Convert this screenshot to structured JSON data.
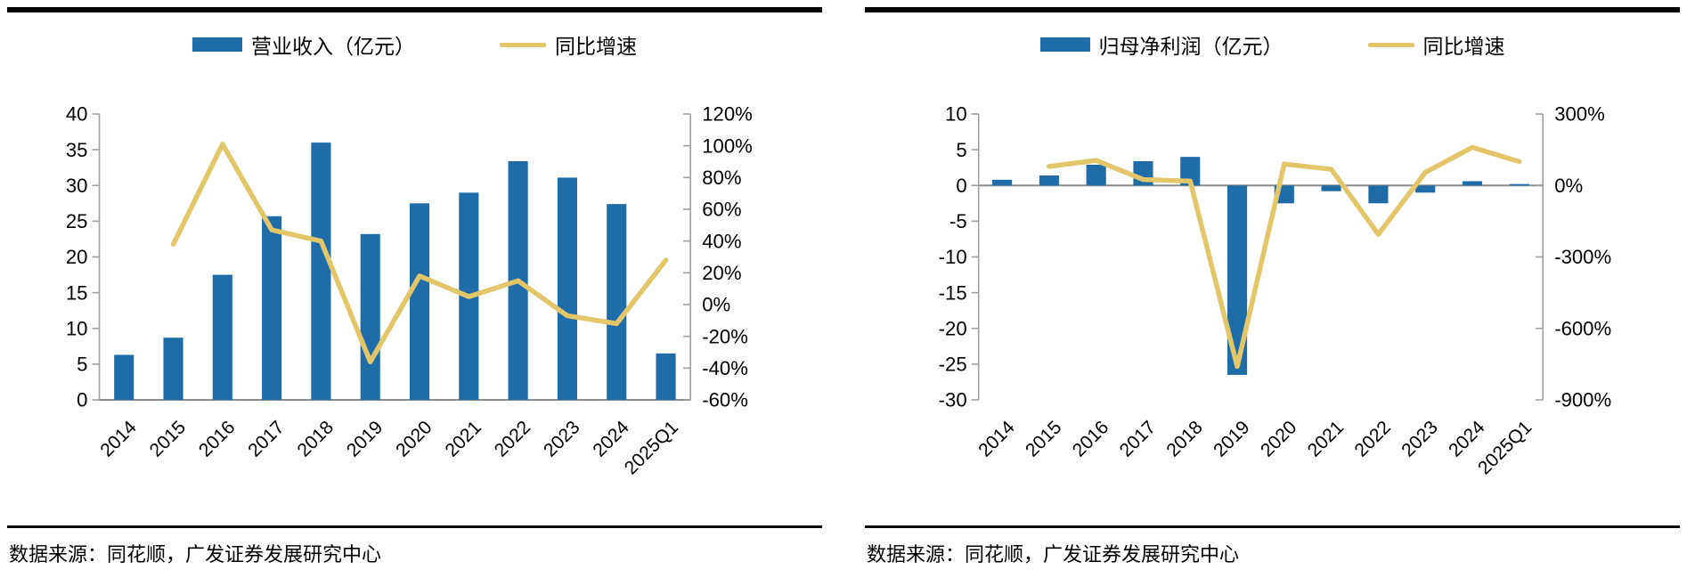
{
  "colors": {
    "bar": "#1F6DA8",
    "line": "#E3C66A",
    "axis": "#A0A0A0",
    "zero_line": "#8C8C8C",
    "top_rule": "#000000"
  },
  "chart_data": [
    {
      "type": "bar+line",
      "legend": [
        {
          "label": "营业收入（亿元）",
          "swatch": "bar"
        },
        {
          "label": "同比增速",
          "swatch": "line"
        }
      ],
      "categories": [
        "2014",
        "2015",
        "2016",
        "2017",
        "2018",
        "2019",
        "2020",
        "2021",
        "2022",
        "2023",
        "2024",
        "2025Q1"
      ],
      "series": [
        {
          "name": "营业收入（亿元）",
          "type": "bar",
          "axis": "left",
          "values": [
            6.3,
            8.7,
            17.5,
            25.7,
            36.0,
            23.2,
            27.5,
            29.0,
            33.4,
            31.1,
            27.4,
            6.5
          ]
        },
        {
          "name": "同比增速",
          "type": "line",
          "axis": "right",
          "values": [
            null,
            38,
            101,
            47,
            40,
            -36,
            18,
            5,
            15,
            -7,
            -12,
            28
          ]
        }
      ],
      "left_axis": {
        "min": 0,
        "max": 40,
        "step": 5,
        "ticks": [
          "40",
          "35",
          "30",
          "25",
          "20",
          "15",
          "10",
          "5",
          "0"
        ]
      },
      "right_axis": {
        "min": -60,
        "max": 120,
        "step": 20,
        "ticks": [
          "120%",
          "100%",
          "80%",
          "60%",
          "40%",
          "20%",
          "0%",
          "-20%",
          "-40%",
          "-60%"
        ]
      },
      "grid": false,
      "legend_position": "top",
      "source": "数据来源：同花顺，广发证券发展研究中心"
    },
    {
      "type": "bar+line",
      "legend": [
        {
          "label": "归母净利润（亿元）",
          "swatch": "bar"
        },
        {
          "label": "同比增速",
          "swatch": "line"
        }
      ],
      "categories": [
        "2014",
        "2015",
        "2016",
        "2017",
        "2018",
        "2019",
        "2020",
        "2021",
        "2022",
        "2023",
        "2024",
        "2025Q1"
      ],
      "series": [
        {
          "name": "归母净利润（亿元）",
          "type": "bar",
          "axis": "left",
          "values": [
            0.8,
            1.4,
            2.9,
            3.4,
            4.0,
            -26.5,
            -2.5,
            -0.8,
            -2.5,
            -1.0,
            0.6,
            0.2
          ]
        },
        {
          "name": "同比增速",
          "type": "line",
          "axis": "right",
          "values": [
            null,
            80,
            105,
            25,
            18,
            -760,
            90,
            68,
            -205,
            55,
            160,
            100
          ]
        }
      ],
      "left_axis": {
        "min": -30,
        "max": 10,
        "step": 5,
        "ticks": [
          "10",
          "5",
          "0",
          "-5",
          "-10",
          "-15",
          "-20",
          "-25",
          "-30"
        ]
      },
      "right_axis": {
        "min": -900,
        "max": 300,
        "step": 300,
        "ticks": [
          "300%",
          "0%",
          "-300%",
          "-600%",
          "-900%"
        ]
      },
      "grid": false,
      "legend_position": "top",
      "source": "数据来源：同花顺，广发证券发展研究中心"
    }
  ]
}
